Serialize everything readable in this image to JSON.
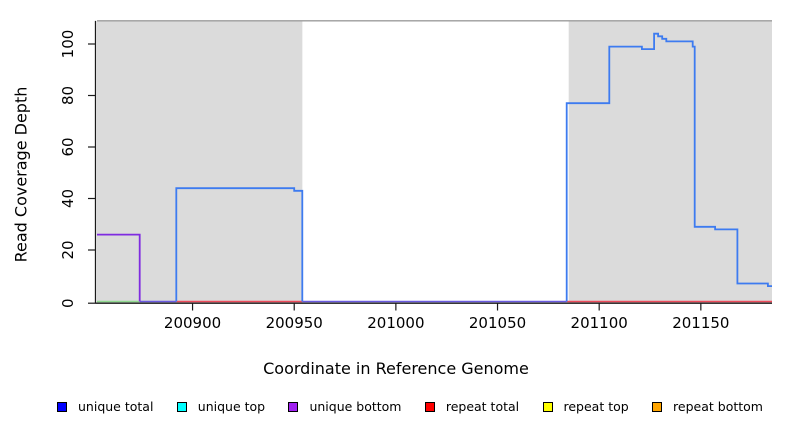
{
  "figure": {
    "xlabel": "Coordinate in Reference Genome",
    "ylabel": "Read Coverage Depth"
  },
  "legend": {
    "items": [
      {
        "label": "unique total",
        "color": "#0000FF"
      },
      {
        "label": "unique top",
        "color": "#00FFFF"
      },
      {
        "label": "unique bottom",
        "color": "#A020F0"
      },
      {
        "label": "repeat total",
        "color": "#FF0000"
      },
      {
        "label": "repeat top",
        "color": "#FFFF00"
      },
      {
        "label": "repeat bottom",
        "color": "#FFA500"
      }
    ]
  },
  "chart_data": {
    "type": "line",
    "title": "",
    "xlabel": "Coordinate in Reference Genome",
    "ylabel": "Read Coverage Depth",
    "xlim": [
      200853,
      201185
    ],
    "ylim": [
      0,
      109
    ],
    "x_ticks": [
      200900,
      200950,
      201000,
      201050,
      201100,
      201150
    ],
    "y_ticks": [
      0,
      20,
      40,
      60,
      80,
      100
    ],
    "grid": false,
    "legend_position": "bottom",
    "plot_top_border_color": "#9C9C9C",
    "axis_color": "#1a1a1a",
    "shaded_regions": [
      {
        "name": "repeat-region-left",
        "x0": 200853,
        "x1": 200954,
        "color": "#DBDBDB"
      },
      {
        "name": "repeat-region-right",
        "x0": 201085,
        "x1": 201185,
        "color": "#DBDBDB"
      }
    ],
    "series": [
      {
        "name": "baseline-red-repeat-total",
        "color": "#ED4B5B",
        "width": 1.5,
        "segments": [
          [
            [
              200892,
              0
            ],
            [
              200954,
              0
            ]
          ],
          [
            [
              201084,
              0
            ],
            [
              201185,
              0
            ]
          ]
        ]
      },
      {
        "name": "baseline-violet-unique-zero",
        "color": "#6A5AE0",
        "width": 1.6,
        "segments": [
          [
            [
              200874,
              0
            ],
            [
              200892,
              0
            ]
          ],
          [
            [
              200954,
              0
            ],
            [
              201084,
              0
            ]
          ]
        ]
      },
      {
        "name": "baseline-green",
        "color": "#8FD98F",
        "width": 1.5,
        "segments": [
          [
            [
              200853,
              0
            ],
            [
              200874,
              0
            ]
          ]
        ]
      },
      {
        "name": "unique-bottom",
        "color": "#7F2BE0",
        "width": 1.8,
        "segments": [
          [
            [
              200853,
              26
            ],
            [
              200874,
              26
            ],
            [
              200874,
              0
            ]
          ]
        ]
      },
      {
        "name": "unique-total",
        "color": "#3D7BF0",
        "width": 1.8,
        "segments": [
          [
            [
              200892,
              0
            ],
            [
              200892,
              44
            ],
            [
              200950,
              44
            ],
            [
              200950,
              43
            ],
            [
              200954,
              43
            ],
            [
              200954,
              0
            ]
          ],
          [
            [
              201084,
              0
            ],
            [
              201084,
              77
            ],
            [
              201105,
              77
            ],
            [
              201105,
              99
            ],
            [
              201121,
              99
            ],
            [
              201121,
              98
            ],
            [
              201127,
              98
            ],
            [
              201127,
              104
            ],
            [
              201129,
              104
            ],
            [
              201129,
              103
            ],
            [
              201131,
              103
            ],
            [
              201131,
              102
            ],
            [
              201133,
              102
            ],
            [
              201133,
              101
            ],
            [
              201146,
              101
            ],
            [
              201146,
              99
            ],
            [
              201147,
              99
            ],
            [
              201147,
              29
            ],
            [
              201157,
              29
            ],
            [
              201157,
              28
            ],
            [
              201168,
              28
            ],
            [
              201168,
              7
            ],
            [
              201183,
              7
            ],
            [
              201183,
              6
            ],
            [
              201185,
              6
            ]
          ]
        ]
      }
    ]
  }
}
